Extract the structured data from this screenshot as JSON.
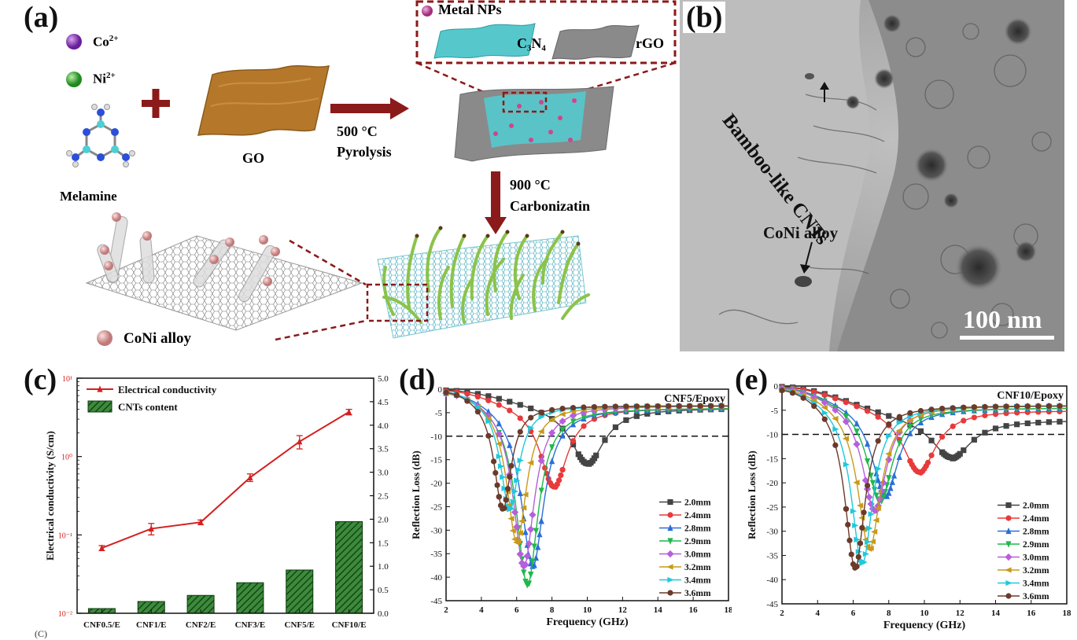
{
  "panel_a": {
    "label": "(a)",
    "legend_co": "Co",
    "legend_co_sup": "2+",
    "legend_ni": "Ni",
    "legend_ni_sup": "2+",
    "melamine": "Melamine",
    "go": "GO",
    "step1_temp": "500 °C",
    "step1_name": "Pyrolysis",
    "step2_temp": "900 °C",
    "step2_name": "Carbonizatin",
    "inset_metal": "Metal NPs",
    "inset_c3n4": "C₃N₄",
    "inset_rgo": "rGO",
    "coni_alloy": "CoNi alloy",
    "colors": {
      "co": "#8e3fbf",
      "ni": "#35b035",
      "go": "#b5782b",
      "c3n4": "#56c8cc",
      "rgo": "#8a8a8a",
      "arrow": "#8b1a1a",
      "coni": "#e0a0a0"
    }
  },
  "panel_b": {
    "label": "(b)",
    "annot_cnt": "Bamboo-like CNTs",
    "annot_alloy": "CoNi alloy",
    "scalebar": "100 nm"
  },
  "panel_c": {
    "label": "(c)",
    "sub_label": "(C)"
  },
  "panel_d": {
    "label": "(d)"
  },
  "panel_e": {
    "label": "(e)"
  },
  "chart_data": [
    {
      "panel": "c",
      "type": "line+bar",
      "categories": [
        "CNF0.5/E",
        "CNF1/E",
        "CNF2/E",
        "CNF3/E",
        "CNF5/E",
        "CNF10/E"
      ],
      "series": [
        {
          "name": "Electrical conductivity",
          "type": "line",
          "axis": "left",
          "color": "#d42020",
          "values": [
            0.068,
            0.12,
            0.145,
            0.54,
            1.55,
            3.7
          ],
          "errors": [
            0.005,
            0.02,
            0.01,
            0.06,
            0.3,
            0.3
          ]
        },
        {
          "name": "CNTs content",
          "type": "bar",
          "axis": "right",
          "color": "#1e6b1e",
          "values": [
            0.1,
            0.25,
            0.38,
            0.65,
            0.92,
            1.95
          ]
        }
      ],
      "ylabel": "Electrical conductivity (S/cm)",
      "ylog": true,
      "ylim": [
        0.01,
        10
      ],
      "yticks": [
        "10⁻²",
        "10⁻¹",
        "10⁰",
        "10¹"
      ],
      "y2lim": [
        0,
        5
      ],
      "y2ticks": [
        "0.0",
        "0.5",
        "1.0",
        "1.5",
        "2.0",
        "2.5",
        "3.0",
        "3.5",
        "4.0",
        "4.5",
        "5.0"
      ],
      "legend": "top-left"
    },
    {
      "panel": "d",
      "type": "line",
      "title": "CNF5/Epoxy",
      "xlabel": "Frequency (GHz)",
      "ylabel": "Reflection Loss (dB)",
      "xlim": [
        2,
        18
      ],
      "ylim": [
        -45,
        0
      ],
      "xticks": [
        2,
        4,
        6,
        8,
        10,
        12,
        14,
        16,
        18
      ],
      "yticks": [
        0,
        -5,
        -10,
        -15,
        -20,
        -25,
        -30,
        -35,
        -40,
        -45
      ],
      "threshold": -10,
      "legend": "bottom-right",
      "series": [
        {
          "name": "2.0mm",
          "color": "#444444",
          "marker": "square",
          "fmin": 10.0,
          "rlmin": -16,
          "tail": -4
        },
        {
          "name": "2.4mm",
          "color": "#e83a3a",
          "marker": "circle",
          "fmin": 8.1,
          "rlmin": -21,
          "tail": -4
        },
        {
          "name": "2.8mm",
          "color": "#2a6fd8",
          "marker": "triangle-up",
          "fmin": 6.9,
          "rlmin": -38,
          "tail": -4
        },
        {
          "name": "2.9mm",
          "color": "#1fb84a",
          "marker": "triangle-down",
          "fmin": 6.6,
          "rlmin": -42,
          "tail": -4
        },
        {
          "name": "3.0mm",
          "color": "#b65fdc",
          "marker": "diamond",
          "fmin": 6.4,
          "rlmin": -38,
          "tail": -3.5
        },
        {
          "name": "3.2mm",
          "color": "#c89a1a",
          "marker": "triangle-left",
          "fmin": 6.0,
          "rlmin": -33,
          "tail": -3.5
        },
        {
          "name": "3.4mm",
          "color": "#20c8dc",
          "marker": "triangle-right",
          "fmin": 5.6,
          "rlmin": -26,
          "tail": -3.5
        },
        {
          "name": "3.6mm",
          "color": "#6b3a2a",
          "marker": "circle",
          "fmin": 5.2,
          "rlmin": -26,
          "tail": -3.5
        }
      ]
    },
    {
      "panel": "e",
      "type": "line",
      "title": "CNF10/Epoxy",
      "xlabel": "Frequency (GHz)",
      "ylabel": "Reflection Loss (dB)",
      "xlim": [
        2,
        18
      ],
      "ylim": [
        -45,
        0
      ],
      "xticks": [
        2,
        4,
        6,
        8,
        10,
        12,
        14,
        16,
        18
      ],
      "yticks": [
        0,
        -5,
        -10,
        -15,
        -20,
        -25,
        -30,
        -35,
        -40,
        -45
      ],
      "threshold": -10,
      "legend": "bottom-right",
      "series": [
        {
          "name": "2.0mm",
          "color": "#444444",
          "marker": "square",
          "fmin": 11.5,
          "rlmin": -15,
          "tail": -7
        },
        {
          "name": "2.4mm",
          "color": "#e83a3a",
          "marker": "circle",
          "fmin": 9.7,
          "rlmin": -18,
          "tail": -5
        },
        {
          "name": "2.8mm",
          "color": "#2a6fd8",
          "marker": "triangle-up",
          "fmin": 7.8,
          "rlmin": -23,
          "tail": -4.5
        },
        {
          "name": "2.9mm",
          "color": "#1fb84a",
          "marker": "triangle-down",
          "fmin": 7.5,
          "rlmin": -24,
          "tail": -4.5
        },
        {
          "name": "3.0mm",
          "color": "#b65fdc",
          "marker": "diamond",
          "fmin": 7.2,
          "rlmin": -26,
          "tail": -4
        },
        {
          "name": "3.2mm",
          "color": "#c89a1a",
          "marker": "triangle-left",
          "fmin": 6.9,
          "rlmin": -34,
          "tail": -4
        },
        {
          "name": "3.4mm",
          "color": "#20c8dc",
          "marker": "triangle-right",
          "fmin": 6.5,
          "rlmin": -37,
          "tail": -4
        },
        {
          "name": "3.6mm",
          "color": "#6b3a2a",
          "marker": "circle",
          "fmin": 6.1,
          "rlmin": -38,
          "tail": -4
        }
      ]
    }
  ]
}
